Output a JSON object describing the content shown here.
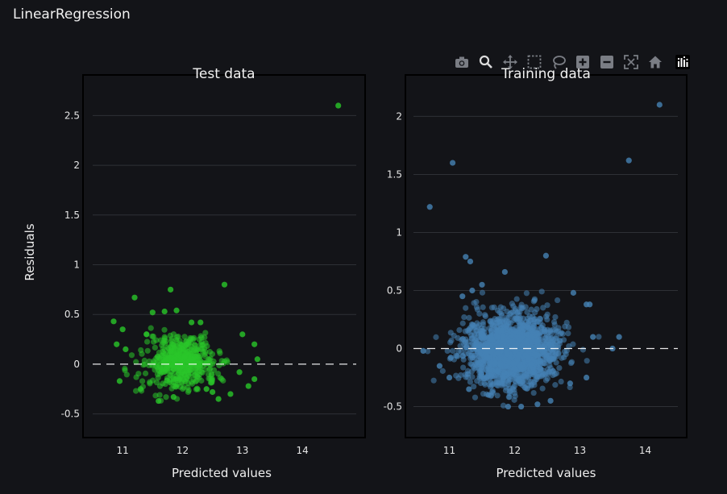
{
  "app": {
    "title": "LinearRegression"
  },
  "modebar": {
    "buttons": [
      "camera-icon",
      "zoom-icon",
      "pan-icon",
      "box-select-icon",
      "lasso-select-icon",
      "zoom-in-icon",
      "zoom-out-icon",
      "autoscale-icon",
      "reset-axes-icon"
    ],
    "logo": "plotly-logo-icon"
  },
  "colors": {
    "background": "#131418",
    "grid": "#2e3036",
    "zero_line": "#ffffff",
    "test_points": "#29c729",
    "train_points": "#4682b4"
  },
  "chart_data": [
    {
      "type": "scatter",
      "title": "Test data",
      "xlabel": "Predicted values",
      "ylabel": "Residuals",
      "xlim": [
        10.5,
        14.9
      ],
      "ylim": [
        -0.73,
        2.9
      ],
      "x_ticks": [
        "11",
        "12",
        "13",
        "14"
      ],
      "y_ticks": [
        "-0.5",
        "0",
        "0.5",
        "1",
        "1.5",
        "2",
        "2.5"
      ],
      "reference_line": {
        "y": 0,
        "style": "dashed"
      },
      "marker_color": "#29c729",
      "center": [
        11.95,
        0.02
      ],
      "spread": [
        0.3,
        0.13
      ],
      "n_points": 500,
      "points": [
        [
          14.6,
          2.6
        ],
        [
          12.7,
          0.8
        ],
        [
          11.8,
          0.75
        ],
        [
          11.2,
          0.67
        ],
        [
          10.85,
          0.43
        ],
        [
          11.5,
          0.52
        ],
        [
          11.7,
          0.53
        ],
        [
          11.9,
          0.54
        ],
        [
          12.15,
          0.42
        ],
        [
          12.3,
          0.42
        ],
        [
          11.0,
          0.35
        ],
        [
          10.9,
          0.2
        ],
        [
          13.2,
          0.2
        ],
        [
          13.25,
          0.05
        ],
        [
          13.0,
          0.3
        ],
        [
          11.6,
          -0.37
        ],
        [
          12.6,
          -0.35
        ],
        [
          12.8,
          -0.3
        ],
        [
          11.3,
          -0.25
        ],
        [
          10.95,
          -0.17
        ],
        [
          13.2,
          -0.15
        ],
        [
          12.4,
          -0.25
        ],
        [
          11.85,
          -0.33
        ],
        [
          12.95,
          -0.08
        ],
        [
          13.1,
          -0.22
        ],
        [
          12.5,
          -0.28
        ],
        [
          11.05,
          0.15
        ],
        [
          11.4,
          0.3
        ]
      ]
    },
    {
      "type": "scatter",
      "title": "Training data",
      "xlabel": "Predicted values",
      "ylabel": "",
      "xlim": [
        10.45,
        14.5
      ],
      "ylim": [
        -0.76,
        2.35
      ],
      "x_ticks": [
        "11",
        "12",
        "13",
        "14"
      ],
      "y_ticks": [
        "-0.5",
        "0",
        "0.5",
        "1",
        "1.5",
        "2"
      ],
      "reference_line": {
        "y": 0,
        "style": "dashed"
      },
      "marker_color": "#4682b4",
      "center": [
        11.95,
        -0.02
      ],
      "spread": [
        0.35,
        0.15
      ],
      "n_points": 1800,
      "points": [
        [
          14.22,
          2.1
        ],
        [
          13.75,
          1.62
        ],
        [
          11.05,
          1.6
        ],
        [
          10.7,
          1.22
        ],
        [
          12.48,
          0.8
        ],
        [
          11.25,
          0.79
        ],
        [
          11.32,
          0.75
        ],
        [
          11.85,
          0.66
        ],
        [
          11.5,
          0.55
        ],
        [
          11.35,
          0.5
        ],
        [
          11.2,
          0.45
        ],
        [
          12.9,
          0.48
        ],
        [
          13.1,
          0.38
        ],
        [
          13.15,
          0.38
        ],
        [
          13.6,
          0.1
        ],
        [
          13.5,
          0.0
        ],
        [
          10.6,
          -0.02
        ],
        [
          10.85,
          -0.15
        ],
        [
          11.0,
          -0.25
        ],
        [
          11.9,
          -0.5
        ],
        [
          12.1,
          -0.5
        ],
        [
          12.35,
          -0.48
        ],
        [
          12.55,
          -0.45
        ],
        [
          12.85,
          -0.3
        ],
        [
          13.1,
          -0.25
        ],
        [
          11.6,
          -0.4
        ],
        [
          11.3,
          -0.35
        ],
        [
          13.2,
          0.1
        ]
      ]
    }
  ]
}
